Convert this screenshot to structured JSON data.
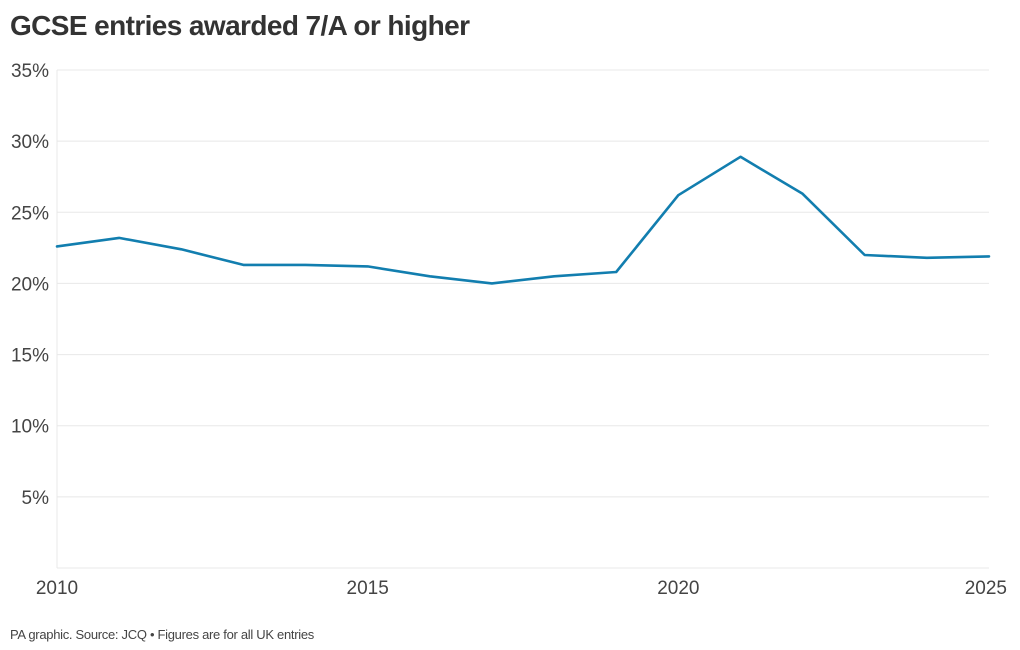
{
  "chart_data": {
    "type": "line",
    "title": "GCSE entries awarded 7/A or higher",
    "xlabel": "",
    "ylabel": "",
    "xlim": [
      2010,
      2025
    ],
    "ylim": [
      0,
      35
    ],
    "grid": true,
    "line_color": "#127eaf",
    "grid_color": "#e8e8e8",
    "x_ticks": [
      2010,
      2015,
      2020,
      2025
    ],
    "x_tick_labels": [
      "2010",
      "2015",
      "2020",
      "2025"
    ],
    "y_ticks": [
      5,
      10,
      15,
      20,
      25,
      30,
      35
    ],
    "y_tick_labels": [
      "5%",
      "10%",
      "15%",
      "20%",
      "25%",
      "30%",
      "35%"
    ],
    "series": [
      {
        "x": [
          2010,
          2011,
          2012,
          2013,
          2014,
          2015,
          2016,
          2017,
          2018,
          2019,
          2020,
          2021,
          2022,
          2023,
          2024,
          2025
        ],
        "values": [
          22.6,
          23.2,
          22.4,
          21.3,
          21.3,
          21.2,
          20.5,
          20.0,
          20.5,
          20.8,
          26.2,
          28.9,
          26.3,
          22.0,
          21.8,
          21.9
        ]
      }
    ]
  },
  "footer": {
    "source": "PA graphic. Source: JCQ • Figures are for all UK entries"
  }
}
